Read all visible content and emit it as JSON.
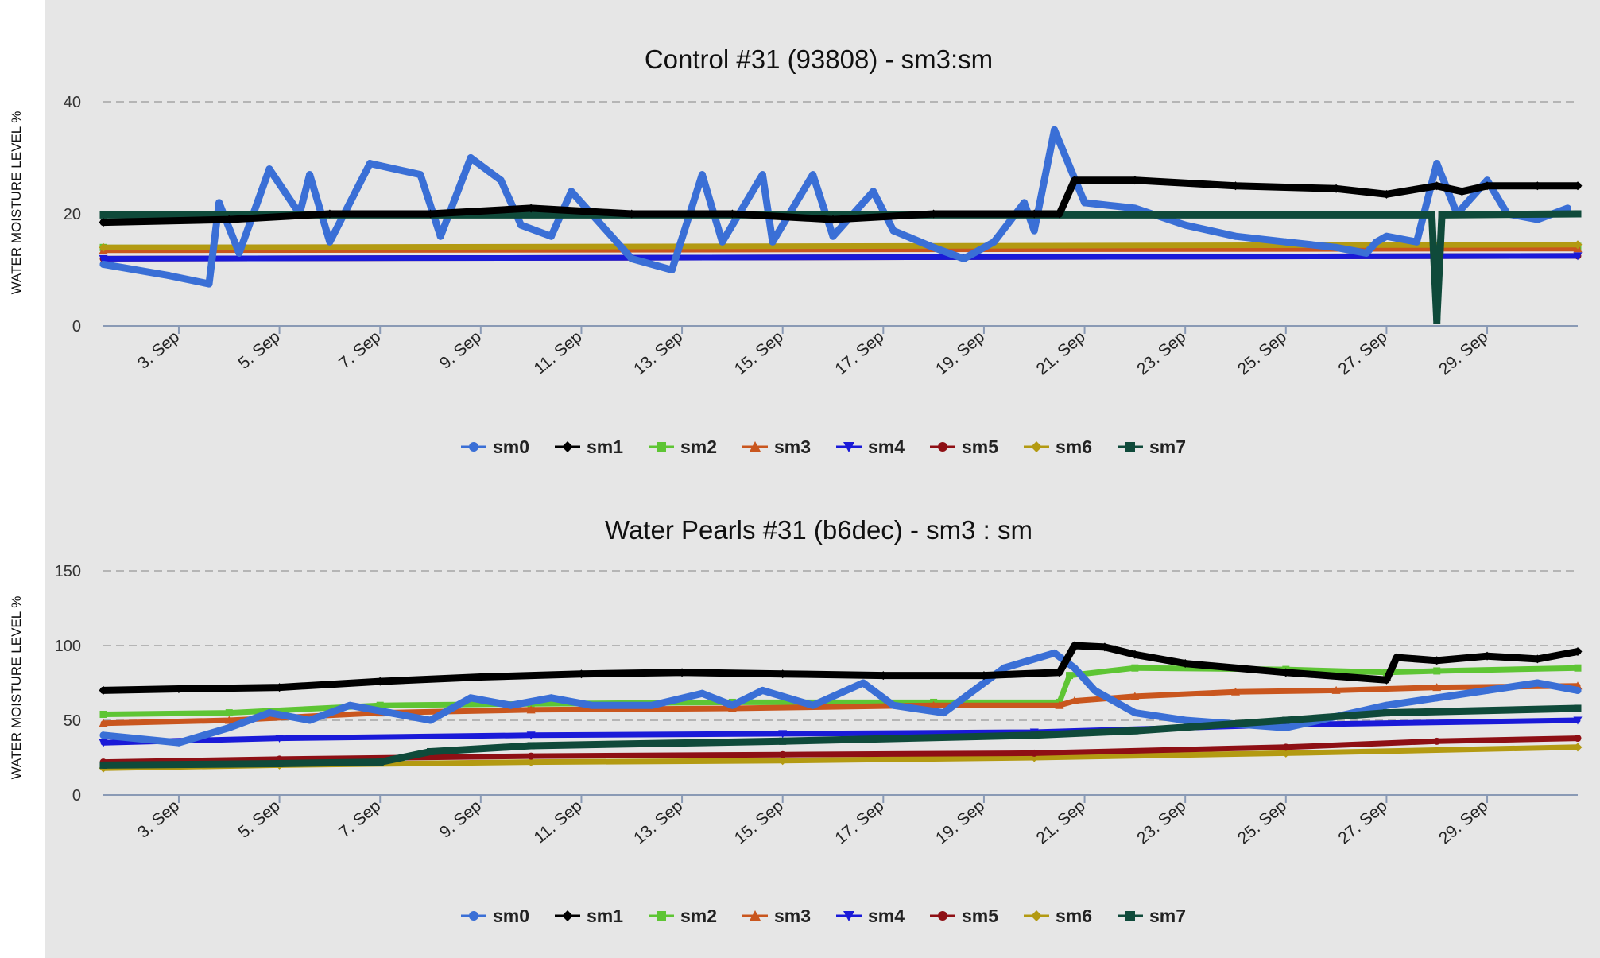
{
  "y_axis_label": "WATER MOISTURE LEVEL %",
  "colors": {
    "sm0": "#3a6fd6",
    "sm1": "#000000",
    "sm2": "#5ec534",
    "sm3": "#c9561e",
    "sm4": "#1a1ad8",
    "sm5": "#8e0f14",
    "sm6": "#b39a12",
    "sm7": "#0f4a3a"
  },
  "chart_data": [
    {
      "type": "line",
      "title": "Control #31 (93808) - sm3:sm",
      "xlabel": "",
      "ylabel": "WATER MOISTURE LEVEL %",
      "x_range_days": [
        1.5,
        30.8
      ],
      "ylim": [
        0,
        40
      ],
      "y_ticks": [
        0,
        20,
        40
      ],
      "x_ticks": [
        "3. Sep",
        "5. Sep",
        "7. Sep",
        "9. Sep",
        "11. Sep",
        "13. Sep",
        "15. Sep",
        "17. Sep",
        "19. Sep",
        "21. Sep",
        "23. Sep",
        "25. Sep",
        "27. Sep",
        "29. Sep"
      ],
      "grid": "horizontal dashed",
      "legend": "bottom",
      "series": [
        {
          "name": "sm0",
          "x": [
            1.5,
            2.8,
            3.6,
            3.8,
            4.2,
            4.8,
            5.4,
            5.6,
            6.0,
            6.8,
            7.8,
            8.2,
            8.8,
            9.4,
            9.8,
            10.4,
            10.8,
            12.0,
            12.8,
            13.4,
            13.8,
            14.6,
            14.8,
            15.6,
            16.0,
            16.8,
            17.2,
            18.0,
            18.6,
            19.2,
            19.8,
            20.0,
            20.4,
            21.0,
            22.0,
            23.0,
            24.0,
            25.0,
            26.0,
            26.6,
            26.8,
            27.0,
            27.6,
            28.0,
            28.4,
            29.0,
            29.4,
            30.0,
            30.6
          ],
          "y": [
            11,
            9,
            7.5,
            22,
            13,
            28,
            20,
            27,
            15,
            29,
            27,
            16,
            30,
            26,
            18,
            16,
            24,
            12,
            10,
            27,
            15,
            27,
            15,
            27,
            16,
            24,
            17,
            14,
            12,
            15,
            22,
            17,
            35,
            22,
            21,
            18,
            16,
            15,
            14,
            13,
            15,
            16,
            15,
            29,
            20,
            26,
            20,
            19,
            21
          ]
        },
        {
          "name": "sm1",
          "x": [
            1.5,
            4.0,
            6.0,
            8.0,
            10.0,
            12.0,
            14.0,
            16.0,
            18.0,
            20.0,
            20.5,
            20.8,
            22.0,
            24.0,
            26.0,
            27.0,
            28.0,
            28.5,
            29.0,
            30.0,
            30.8
          ],
          "y": [
            18.5,
            19,
            20,
            20,
            21,
            20,
            20,
            19,
            20,
            20,
            20,
            26,
            26,
            25,
            24.5,
            23.5,
            25,
            24,
            25,
            25,
            25
          ]
        },
        {
          "name": "sm2",
          "x": [
            1.5,
            30.8
          ],
          "y": [
            14,
            14.2
          ]
        },
        {
          "name": "sm3",
          "x": [
            1.5,
            30.8
          ],
          "y": [
            13.5,
            13.8
          ]
        },
        {
          "name": "sm4",
          "x": [
            1.5,
            30.8
          ],
          "y": [
            12,
            12.5
          ]
        },
        {
          "name": "sm5",
          "x": [
            1.5,
            30.8
          ],
          "y": [
            12,
            12.5
          ]
        },
        {
          "name": "sm6",
          "x": [
            1.5,
            30.8
          ],
          "y": [
            14,
            14.5
          ]
        },
        {
          "name": "sm7",
          "x": [
            1.5,
            27.9,
            28.0,
            28.1,
            30.8
          ],
          "y": [
            19.8,
            19.8,
            1,
            19.8,
            20
          ]
        }
      ]
    },
    {
      "type": "line",
      "title": "Water Pearls #31 (b6dec) - sm3 : sm",
      "xlabel": "",
      "ylabel": "WATER MOISTURE LEVEL %",
      "x_range_days": [
        1.5,
        30.8
      ],
      "ylim": [
        0,
        150
      ],
      "y_ticks": [
        0,
        50,
        100,
        150
      ],
      "x_ticks": [
        "3. Sep",
        "5. Sep",
        "7. Sep",
        "9. Sep",
        "11. Sep",
        "13. Sep",
        "15. Sep",
        "17. Sep",
        "19. Sep",
        "21. Sep",
        "23. Sep",
        "25. Sep",
        "27. Sep",
        "29. Sep"
      ],
      "grid": "horizontal dashed",
      "legend": "bottom",
      "series": [
        {
          "name": "sm0",
          "x": [
            1.5,
            3.0,
            4.0,
            4.8,
            5.6,
            6.4,
            7.2,
            8.0,
            8.8,
            9.6,
            10.4,
            11.2,
            12.4,
            13.4,
            14.0,
            14.6,
            15.6,
            16.6,
            17.2,
            18.2,
            19.4,
            20.4,
            20.8,
            21.2,
            22.0,
            23.0,
            25.0,
            27.0,
            28.0,
            29.0,
            30.0,
            30.8
          ],
          "y": [
            40,
            35,
            45,
            55,
            50,
            60,
            55,
            50,
            65,
            60,
            65,
            60,
            60,
            68,
            60,
            70,
            60,
            75,
            60,
            55,
            85,
            95,
            85,
            70,
            55,
            50,
            45,
            60,
            65,
            70,
            75,
            70
          ]
        },
        {
          "name": "sm1",
          "x": [
            1.5,
            3.0,
            5.0,
            7.0,
            9.0,
            11.0,
            13.0,
            15.0,
            17.0,
            19.0,
            20.5,
            20.8,
            21.4,
            22.0,
            23.0,
            25.0,
            27.0,
            27.2,
            28.0,
            29.0,
            30.0,
            30.8
          ],
          "y": [
            70,
            71,
            72,
            76,
            79,
            81,
            82,
            81,
            80,
            80,
            82,
            100,
            99,
            94,
            88,
            82,
            77,
            92,
            90,
            93,
            91,
            96
          ]
        },
        {
          "name": "sm2",
          "x": [
            1.5,
            4.0,
            7.0,
            10.0,
            14.0,
            18.0,
            20.5,
            20.7,
            22.0,
            25.0,
            27.0,
            28.0,
            30.8
          ],
          "y": [
            54,
            55,
            60,
            61,
            62,
            62,
            62,
            80,
            85,
            84,
            82,
            83,
            85
          ]
        },
        {
          "name": "sm3",
          "x": [
            1.5,
            4.0,
            7.0,
            10.0,
            14.0,
            18.0,
            20.5,
            20.8,
            22.0,
            24.0,
            26.0,
            28.0,
            30.8
          ],
          "y": [
            48,
            50,
            55,
            57,
            58,
            60,
            60,
            63,
            66,
            69,
            70,
            72,
            73
          ]
        },
        {
          "name": "sm4",
          "x": [
            1.5,
            5.0,
            10.0,
            15.0,
            20.0,
            25.0,
            30.8
          ],
          "y": [
            35,
            38,
            40,
            41,
            42,
            47,
            50
          ]
        },
        {
          "name": "sm5",
          "x": [
            1.5,
            5.0,
            10.0,
            15.0,
            20.0,
            25.0,
            28.0,
            30.8
          ],
          "y": [
            22,
            24,
            26,
            27,
            28,
            32,
            36,
            38
          ]
        },
        {
          "name": "sm6",
          "x": [
            1.5,
            5.0,
            10.0,
            15.0,
            20.0,
            25.0,
            30.8
          ],
          "y": [
            18,
            20,
            22,
            23,
            25,
            28,
            32
          ]
        },
        {
          "name": "sm7",
          "x": [
            1.5,
            5.0,
            7.0,
            8.0,
            10.0,
            15.0,
            20.0,
            22.0,
            25.0,
            27.0,
            30.8
          ],
          "y": [
            20,
            21,
            22,
            29,
            33,
            36,
            40,
            43,
            50,
            55,
            58
          ]
        }
      ]
    }
  ]
}
